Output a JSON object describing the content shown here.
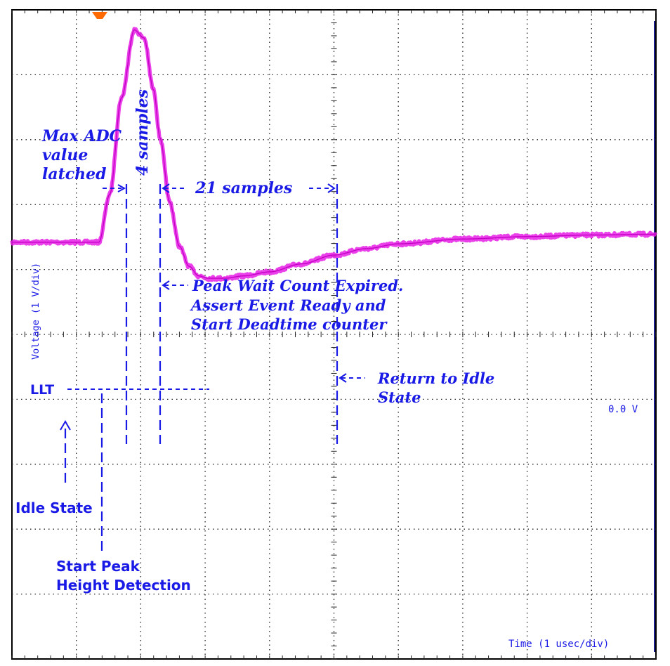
{
  "colors": {
    "trace": "#e61ee6",
    "annotation": "#1a1ae6",
    "grid": "#222222",
    "frame": "#000000",
    "background": "#ffffff",
    "trigger_marker": "#ff6a00"
  },
  "chart_data": {
    "type": "line",
    "title": "",
    "xlabel": "Time (1 usec/div)",
    "ylabel": "Voltage (1 V/div)",
    "xlim": [
      0,
      10
    ],
    "ylim": [
      -5.2,
      2.9
    ],
    "grid": true,
    "series": [
      {
        "x": [
          0,
          1.35,
          1.52,
          1.7,
          1.9,
          2.05,
          2.2,
          2.3,
          2.45,
          2.6,
          2.75,
          2.9,
          3.05,
          3.3,
          3.6,
          4.0,
          4.5,
          5.0,
          5.5,
          6.0,
          7.0,
          8.0,
          9.0,
          10.0
        ],
        "y": [
          0.0,
          0.0,
          0.6,
          1.8,
          2.65,
          2.55,
          1.9,
          1.3,
          0.5,
          -0.05,
          -0.3,
          -0.42,
          -0.45,
          -0.45,
          -0.42,
          -0.37,
          -0.27,
          -0.16,
          -0.08,
          -0.02,
          0.04,
          0.07,
          0.09,
          0.1
        ]
      }
    ],
    "reference_marker": "0.0 V",
    "annotations": {
      "max_adc": [
        "Max ADC",
        "value",
        "latched"
      ],
      "four_samples": "4 samples",
      "twentyone_samples": "21 samples",
      "peak_wait": [
        "Peak Wait Count Expired.",
        "Assert Event Ready and",
        "Start Deadtime counter"
      ],
      "return_idle": [
        "Return to Idle",
        "State"
      ],
      "llt": "LLT",
      "idle_state": "Idle State",
      "start_peak": [
        "Start Peak",
        "Height Detection"
      ]
    }
  }
}
